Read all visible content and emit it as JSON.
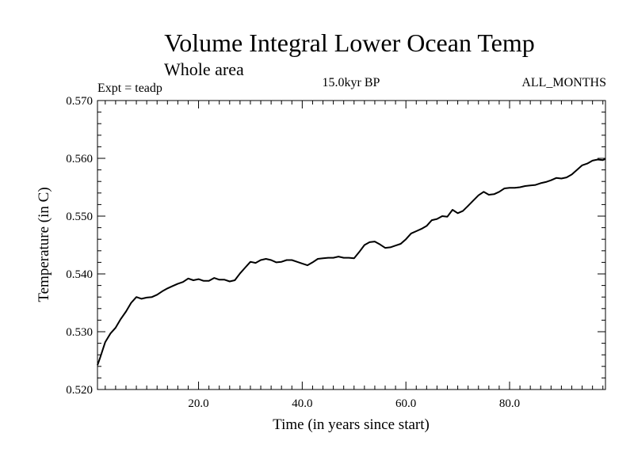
{
  "chart_data": {
    "type": "line",
    "title": "Volume Integral Lower Ocean Temp",
    "subtitle": "Whole area",
    "expt_label": "Expt = teadp",
    "period_label": "15.0kyr BP",
    "months_label": "ALL_MONTHS",
    "xlabel": "Time (in years since start)",
    "ylabel": "Temperature (in C)",
    "xlim": [
      0.5,
      98.5
    ],
    "ylim": [
      0.52,
      0.57
    ],
    "x_ticks": [
      20,
      40,
      60,
      80
    ],
    "x_tick_labels": [
      "20.0",
      "40.0",
      "60.0",
      "80.0"
    ],
    "y_ticks": [
      0.52,
      0.53,
      0.54,
      0.55,
      0.56,
      0.57
    ],
    "y_tick_labels": [
      "0.520",
      "0.530",
      "0.540",
      "0.550",
      "0.560",
      "0.570"
    ],
    "grid": false,
    "series": [
      {
        "name": "Volume Integral Lower Ocean Temp",
        "color": "#000000",
        "x": [
          0.5,
          1,
          2,
          3,
          4,
          5,
          6,
          7,
          8,
          9,
          10,
          11,
          12,
          13,
          14,
          15,
          16,
          17,
          18,
          19,
          20,
          21,
          22,
          23,
          24,
          25,
          26,
          27,
          28,
          29,
          30,
          31,
          32,
          33,
          34,
          35,
          36,
          37,
          38,
          39,
          40,
          41,
          42,
          43,
          44,
          45,
          46,
          47,
          48,
          49,
          50,
          51,
          52,
          53,
          54,
          55,
          56,
          57,
          58,
          59,
          60,
          61,
          62,
          63,
          64,
          65,
          66,
          67,
          68,
          69,
          70,
          71,
          72,
          73,
          74,
          75,
          76,
          77,
          78,
          79,
          80,
          81,
          82,
          83,
          84,
          85,
          86,
          87,
          88,
          89,
          90,
          91,
          92,
          93,
          94,
          95,
          96,
          97,
          98,
          98.5
        ],
        "y": [
          0.5242,
          0.5255,
          0.5282,
          0.5297,
          0.5307,
          0.5322,
          0.5335,
          0.535,
          0.536,
          0.5357,
          0.5359,
          0.536,
          0.5364,
          0.537,
          0.5375,
          0.5379,
          0.5383,
          0.5386,
          0.5392,
          0.5389,
          0.5391,
          0.5388,
          0.5388,
          0.5393,
          0.539,
          0.539,
          0.5387,
          0.5389,
          0.5401,
          0.5411,
          0.5421,
          0.5419,
          0.5424,
          0.5426,
          0.5424,
          0.542,
          0.5421,
          0.5424,
          0.5424,
          0.5421,
          0.5418,
          0.5415,
          0.542,
          0.5426,
          0.5427,
          0.5428,
          0.5428,
          0.543,
          0.5428,
          0.5428,
          0.5427,
          0.5438,
          0.545,
          0.5455,
          0.5456,
          0.5451,
          0.5445,
          0.5446,
          0.5449,
          0.5452,
          0.546,
          0.547,
          0.5474,
          0.5478,
          0.5483,
          0.5493,
          0.5495,
          0.55,
          0.5499,
          0.5511,
          0.5505,
          0.5509,
          0.5518,
          0.5527,
          0.5536,
          0.5542,
          0.5537,
          0.5538,
          0.5542,
          0.5548,
          0.5549,
          0.5549,
          0.555,
          0.5552,
          0.5553,
          0.5554,
          0.5557,
          0.5559,
          0.5562,
          0.5566,
          0.5565,
          0.5567,
          0.5572,
          0.558,
          0.5588,
          0.5591,
          0.5596,
          0.5598,
          0.5597,
          0.5599
        ]
      }
    ]
  }
}
